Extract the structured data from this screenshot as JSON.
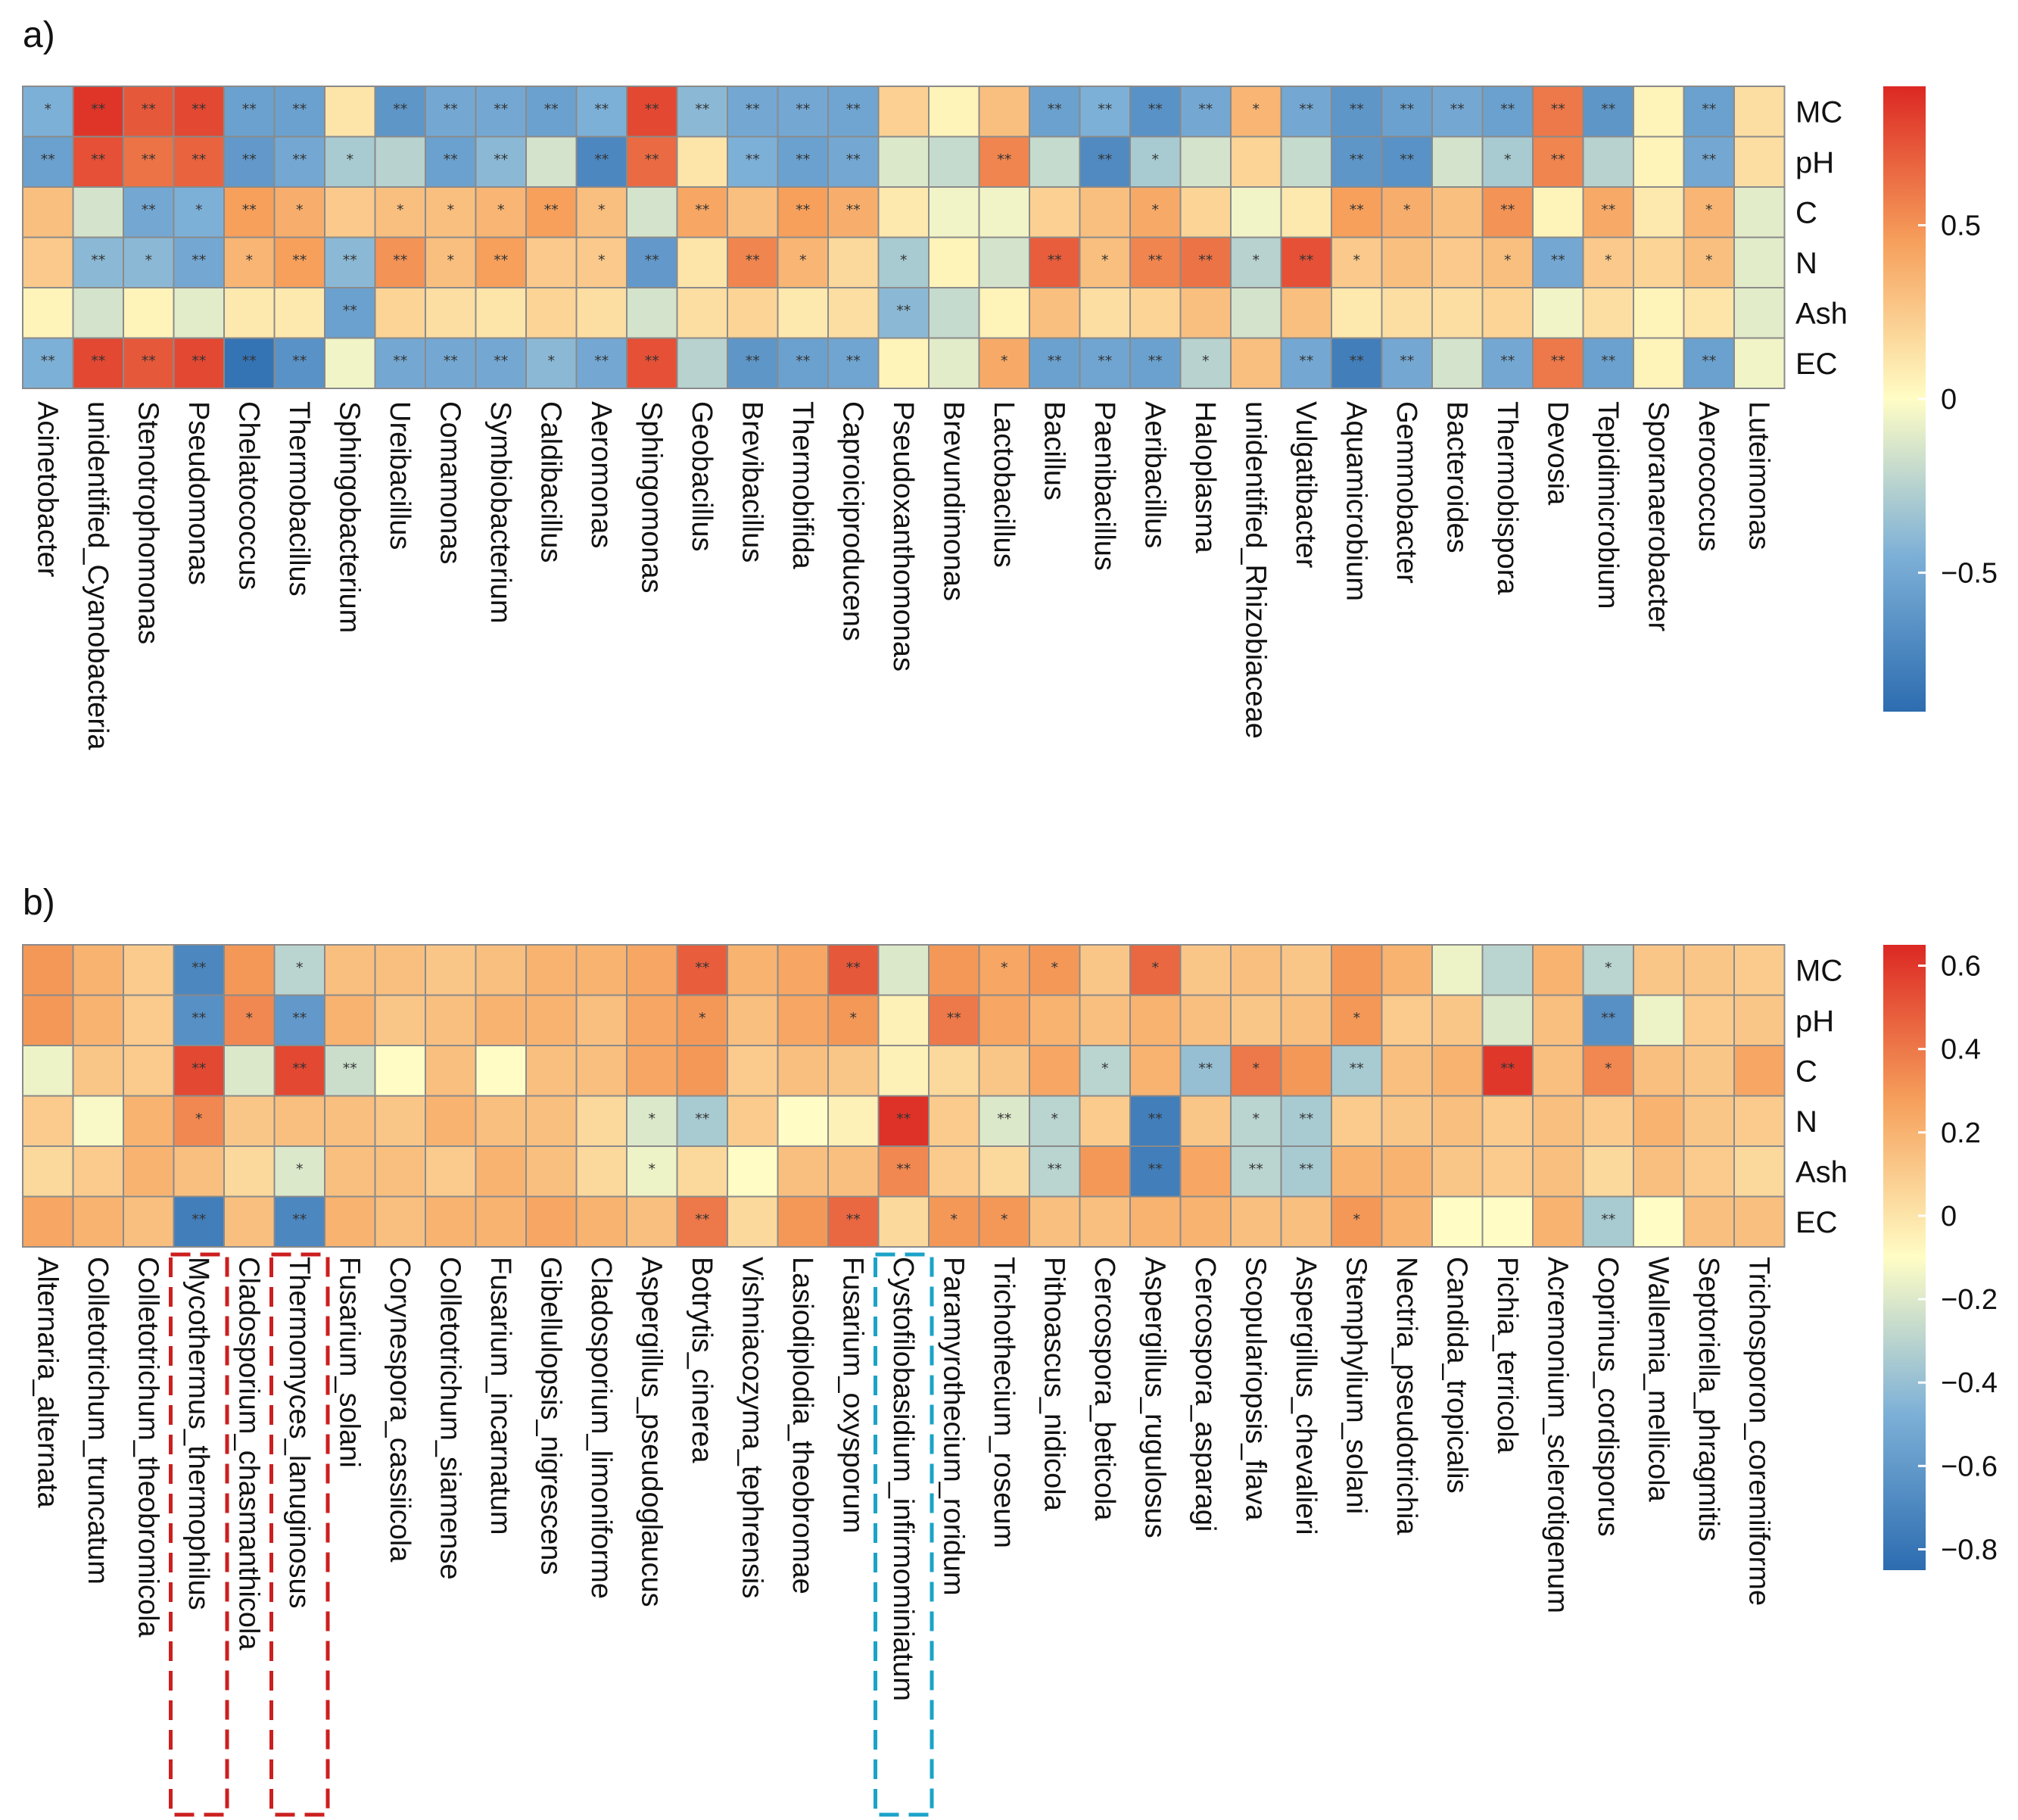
{
  "chart_data": [
    {
      "type": "heatmap",
      "panel_label": "a)",
      "rows": [
        "MC",
        "pH",
        "C",
        "N",
        "Ash",
        "EC"
      ],
      "columns": [
        "Acinetobacter",
        "unidentified_Cyanobacteria",
        "Stenotrophomonas",
        "Pseudomonas",
        "Chelatococcus",
        "Thermobacillus",
        "Sphingobacterium",
        "Ureibacillus",
        "Comamonas",
        "Symbiobacterium",
        "Caldibacillus",
        "Aeromonas",
        "Sphingomonas",
        "Geobacillus",
        "Brevibacillus",
        "Thermobifida",
        "Caproiciproducens",
        "Pseudoxanthomonas",
        "Brevundimonas",
        "Lactobacillus",
        "Bacillus",
        "Paenibacillus",
        "Aeribacillus",
        "Haloplasma",
        "unidentified_Rhizobiaceae",
        "Vulgatibacter",
        "Aquamicrobium",
        "Gemmobacter",
        "Bacteroides",
        "Thermobispora",
        "Devosia",
        "Tepidimicrobium",
        "Sporanaerobacter",
        "Aerococcus",
        "Luteimonas"
      ],
      "values": [
        [
          -0.45,
          0.85,
          0.72,
          0.78,
          -0.55,
          -0.55,
          0.12,
          -0.62,
          -0.5,
          -0.5,
          -0.55,
          -0.45,
          0.78,
          -0.4,
          -0.5,
          -0.5,
          -0.52,
          0.22,
          0.05,
          0.3,
          -0.55,
          -0.45,
          -0.65,
          -0.5,
          0.35,
          -0.5,
          -0.62,
          -0.55,
          -0.5,
          -0.55,
          0.6,
          -0.62,
          0.05,
          -0.55,
          0.15
        ],
        [
          -0.55,
          0.75,
          0.62,
          0.68,
          -0.6,
          -0.5,
          -0.3,
          -0.25,
          -0.55,
          -0.4,
          -0.15,
          -0.72,
          0.65,
          0.12,
          -0.45,
          -0.55,
          -0.5,
          -0.12,
          -0.2,
          0.55,
          -0.2,
          -0.7,
          -0.3,
          -0.15,
          0.2,
          -0.2,
          -0.62,
          -0.65,
          -0.15,
          -0.3,
          0.55,
          -0.25,
          0.05,
          -0.5,
          0.15
        ],
        [
          0.3,
          -0.15,
          -0.5,
          -0.45,
          0.45,
          0.38,
          0.25,
          0.3,
          0.3,
          0.35,
          0.45,
          0.3,
          -0.15,
          0.42,
          0.3,
          0.45,
          0.38,
          0.1,
          -0.05,
          -0.05,
          0.22,
          0.3,
          0.4,
          0.2,
          -0.05,
          0.1,
          0.45,
          0.38,
          0.3,
          0.5,
          0.05,
          0.4,
          0.1,
          0.35,
          -0.1
        ],
        [
          0.25,
          -0.4,
          -0.4,
          -0.5,
          0.35,
          0.45,
          -0.4,
          0.5,
          0.3,
          0.45,
          0.25,
          0.25,
          -0.6,
          0.12,
          0.55,
          0.35,
          0.18,
          -0.3,
          0.05,
          -0.15,
          0.7,
          0.3,
          0.55,
          0.62,
          -0.25,
          0.75,
          0.25,
          0.3,
          0.25,
          0.3,
          -0.5,
          0.25,
          0.2,
          0.3,
          -0.1
        ],
        [
          0.05,
          -0.15,
          0.05,
          -0.1,
          0.1,
          0.1,
          -0.55,
          0.2,
          0.15,
          0.12,
          0.2,
          0.15,
          -0.15,
          0.15,
          0.2,
          0.1,
          0.15,
          -0.4,
          -0.2,
          0.05,
          0.3,
          0.15,
          0.2,
          0.3,
          -0.15,
          0.3,
          0.1,
          0.15,
          0.15,
          0.2,
          -0.05,
          0.15,
          0.05,
          0.12,
          -0.1
        ],
        [
          -0.45,
          0.78,
          0.72,
          0.78,
          -0.85,
          -0.65,
          -0.05,
          -0.5,
          -0.5,
          -0.5,
          -0.4,
          -0.5,
          0.75,
          -0.25,
          -0.62,
          -0.55,
          -0.52,
          0.05,
          -0.1,
          0.4,
          -0.55,
          -0.52,
          -0.55,
          -0.25,
          0.3,
          -0.5,
          -0.78,
          -0.5,
          -0.15,
          -0.5,
          0.6,
          -0.55,
          0.05,
          -0.55,
          -0.05
        ]
      ],
      "significance": [
        [
          "*",
          "**",
          "**",
          "**",
          "**",
          "**",
          "",
          "**",
          "**",
          "**",
          "**",
          "**",
          "**",
          "**",
          "**",
          "**",
          "**",
          "",
          "",
          "",
          "**",
          "**",
          "**",
          "**",
          "*",
          "**",
          "**",
          "**",
          "**",
          "**",
          "**",
          "**",
          "",
          "**",
          ""
        ],
        [
          "**",
          "**",
          "**",
          "**",
          "**",
          "**",
          "*",
          "",
          "**",
          "**",
          "",
          "**",
          "**",
          "",
          "**",
          "**",
          "**",
          "",
          "",
          "**",
          "",
          "**",
          "*",
          "",
          "",
          "",
          "**",
          "**",
          "",
          "*",
          "**",
          "",
          "",
          "**",
          ""
        ],
        [
          "",
          "",
          "**",
          "*",
          "**",
          "*",
          "",
          "*",
          "*",
          "*",
          "**",
          "*",
          "",
          "**",
          "",
          "**",
          "**",
          "",
          "",
          "",
          "",
          "",
          "*",
          "",
          "",
          "",
          "**",
          "*",
          "",
          "**",
          "",
          "**",
          "",
          "*",
          ""
        ],
        [
          "",
          "**",
          "*",
          "**",
          "*",
          "**",
          "**",
          "**",
          "*",
          "**",
          "",
          "*",
          "**",
          "",
          "**",
          "*",
          "",
          "*",
          "",
          "",
          "**",
          "*",
          "**",
          "**",
          "*",
          "**",
          "*",
          "",
          "",
          "*",
          "**",
          "*",
          "",
          "*",
          ""
        ],
        [
          "",
          "",
          "",
          "",
          "",
          "",
          "**",
          "",
          "",
          "",
          "",
          "",
          "",
          "",
          "",
          "",
          "",
          "**",
          "",
          "",
          "",
          "",
          "",
          "",
          "",
          "",
          "",
          "",
          "",
          "",
          "",
          "",
          "",
          "",
          ""
        ],
        [
          "**",
          "**",
          "**",
          "**",
          "**",
          "**",
          "",
          "**",
          "**",
          "**",
          "*",
          "**",
          "**",
          "",
          "**",
          "**",
          "**",
          "",
          "",
          "*",
          "**",
          "**",
          "**",
          "*",
          "",
          "**",
          "**",
          "**",
          "",
          "**",
          "**",
          "**",
          "",
          "**",
          ""
        ]
      ],
      "colorbar": {
        "min": -0.9,
        "max": 0.9,
        "ticks": [
          0.5,
          0,
          -0.5
        ],
        "tick_labels": [
          "0.5",
          "0",
          "−0.5"
        ]
      },
      "highlights": []
    },
    {
      "type": "heatmap",
      "panel_label": "b)",
      "rows": [
        "MC",
        "pH",
        "C",
        "N",
        "Ash",
        "EC"
      ],
      "columns": [
        "Alternaria_alternata",
        "Colletotrichum_truncatum",
        "Colletotrichum_theobromicola",
        "Mycothermus_thermophilus",
        "Cladosporium_chasmanthicola",
        "Thermomyces_lanuginosus",
        "Fusarium_solani",
        "Corynespora_cassiicola",
        "Colletotrichum_siamense",
        "Fusarium_incarnatum",
        "Gibellulopsis_nigrescens",
        "Cladosporium_limoniforme",
        "Aspergillus_pseudoglaucus",
        "Botrytis_cinerea",
        "Vishniacozyma_tephrensis",
        "Lasiodiplodia_theobromae",
        "Fusarium_oxysporum",
        "Cystofilobasidium_infirmominiatum",
        "Paramyrothecium_roridum",
        "Trichothecium_roseum",
        "Pithoascus_nidicola",
        "Cercospora_beticola",
        "Aspergillus_rugulosus",
        "Cercospora_asparagi",
        "Scopulariopsis_flava",
        "Aspergillus_chevalieri",
        "Stemphylium_solani",
        "Nectria_pseudotrichia",
        "Candida_tropicalis",
        "Pichia_terricola",
        "Acremonium_sclerotigenum",
        "Coprinus_cordisporus",
        "Wallemia_mellicola",
        "Septoriella_phragmitis",
        "Trichosporon_coremiiforme"
      ],
      "values": [
        [
          0.3,
          0.2,
          0.1,
          -0.7,
          0.3,
          -0.3,
          0.15,
          0.15,
          0.12,
          0.15,
          0.2,
          0.2,
          0.25,
          0.48,
          0.2,
          0.25,
          0.5,
          -0.2,
          0.3,
          0.25,
          0.3,
          0.12,
          0.45,
          0.12,
          0.15,
          0.12,
          0.3,
          0.2,
          -0.15,
          -0.3,
          0.2,
          -0.3,
          0.12,
          0.12,
          0.1
        ],
        [
          0.3,
          0.2,
          0.1,
          -0.65,
          0.35,
          -0.6,
          0.2,
          0.12,
          0.15,
          0.2,
          0.2,
          0.15,
          0.25,
          0.3,
          0.15,
          0.25,
          0.3,
          -0.05,
          0.4,
          0.25,
          0.2,
          0.15,
          0.2,
          0.15,
          0.12,
          0.15,
          0.3,
          0.1,
          0.12,
          -0.2,
          0.15,
          -0.65,
          -0.15,
          0.1,
          0.12
        ],
        [
          -0.15,
          0.12,
          0.1,
          0.55,
          -0.2,
          0.55,
          -0.25,
          -0.1,
          0.15,
          -0.1,
          0.15,
          0.15,
          0.25,
          0.3,
          0.1,
          0.15,
          0.12,
          -0.05,
          0.05,
          0.12,
          0.25,
          -0.3,
          0.2,
          -0.4,
          0.4,
          0.3,
          -0.35,
          0.15,
          0.2,
          0.6,
          0.15,
          0.35,
          0.15,
          0.12,
          0.25
        ],
        [
          0.1,
          -0.12,
          0.2,
          0.35,
          0.12,
          0.15,
          0.15,
          0.12,
          0.2,
          0.15,
          0.15,
          0.05,
          -0.2,
          -0.35,
          0.1,
          -0.1,
          -0.05,
          0.62,
          0.1,
          -0.2,
          -0.3,
          0.1,
          -0.75,
          0.12,
          -0.3,
          -0.35,
          0.1,
          0.12,
          0.15,
          0.1,
          0.15,
          0.1,
          0.2,
          0.12,
          0.1
        ],
        [
          0.05,
          0.1,
          0.2,
          0.15,
          0.05,
          -0.2,
          0.15,
          0.15,
          0.1,
          0.2,
          0.15,
          0.05,
          -0.15,
          0.05,
          -0.1,
          0.15,
          0.15,
          0.35,
          0.1,
          0.05,
          -0.3,
          0.3,
          -0.75,
          0.25,
          -0.3,
          -0.35,
          0.2,
          0.2,
          0.12,
          0.1,
          0.15,
          0.05,
          0.15,
          0.1,
          0.05
        ],
        [
          0.25,
          0.2,
          0.15,
          -0.75,
          0.15,
          -0.7,
          0.2,
          0.15,
          0.2,
          0.2,
          0.25,
          0.2,
          0.15,
          0.4,
          0.05,
          0.3,
          0.45,
          0.05,
          0.3,
          0.3,
          0.15,
          0.15,
          0.2,
          0.2,
          0.15,
          0.15,
          0.3,
          0.2,
          -0.1,
          -0.1,
          0.2,
          -0.35,
          -0.1,
          0.15,
          0.15
        ]
      ],
      "significance": [
        [
          "",
          "",
          "",
          "**",
          "",
          "*",
          "",
          "",
          "",
          "",
          "",
          "",
          "",
          "**",
          "",
          "",
          "**",
          "",
          "",
          "*",
          "*",
          "",
          "*",
          "",
          "",
          "",
          "",
          "",
          "",
          "",
          "",
          "*",
          "",
          "",
          ""
        ],
        [
          "",
          "",
          "",
          "**",
          "*",
          "**",
          "",
          "",
          "",
          "",
          "",
          "",
          "",
          "*",
          "",
          "",
          "*",
          "",
          "**",
          "",
          "",
          "",
          "",
          "",
          "",
          "",
          "*",
          "",
          "",
          "",
          "",
          "**",
          "",
          "",
          ""
        ],
        [
          "",
          "",
          "",
          "**",
          "",
          "**",
          "**",
          "",
          "",
          "",
          "",
          "",
          "",
          "",
          "",
          "",
          "",
          "",
          "",
          "",
          "",
          "*",
          "",
          "**",
          "*",
          "",
          "**",
          "",
          "",
          "**",
          "",
          "*",
          "",
          "",
          ""
        ],
        [
          "",
          "",
          "",
          "*",
          "",
          "",
          "",
          "",
          "",
          "",
          "",
          "",
          "*",
          "**",
          "",
          "",
          "",
          "**",
          "",
          "**",
          "*",
          "",
          "**",
          "",
          "*",
          "**",
          "",
          "",
          "",
          "",
          "",
          "",
          "",
          "",
          ""
        ],
        [
          "",
          "",
          "",
          "",
          "",
          "*",
          "",
          "",
          "",
          "",
          "",
          "",
          "*",
          "",
          "",
          "",
          "",
          "**",
          "",
          "",
          "**",
          "",
          "**",
          "",
          "**",
          "**",
          "",
          "",
          "",
          "",
          "",
          "",
          "",
          "",
          ""
        ],
        [
          "",
          "",
          "",
          "**",
          "",
          "**",
          "",
          "",
          "",
          "",
          "",
          "",
          "",
          "**",
          "",
          "",
          "**",
          "",
          "*",
          "*",
          "",
          "",
          "",
          "",
          "",
          "",
          "*",
          "",
          "",
          "",
          "",
          "**",
          "",
          "",
          ""
        ]
      ],
      "colorbar": {
        "min": -0.85,
        "max": 0.65,
        "ticks": [
          0.6,
          0.4,
          0.2,
          0,
          -0.2,
          -0.4,
          -0.6,
          -0.8
        ],
        "tick_labels": [
          "0.6",
          "0.4",
          "0.2",
          "0",
          "−0.2",
          "−0.4",
          "−0.6",
          "−0.8"
        ]
      },
      "highlights": [
        {
          "from_column": 3,
          "to_column": 3,
          "color": "#cc1f1f"
        },
        {
          "from_column": 5,
          "to_column": 5,
          "color": "#cc1f1f"
        },
        {
          "from_column": 17,
          "to_column": 17,
          "color": "#1aa3c8"
        }
      ]
    }
  ]
}
